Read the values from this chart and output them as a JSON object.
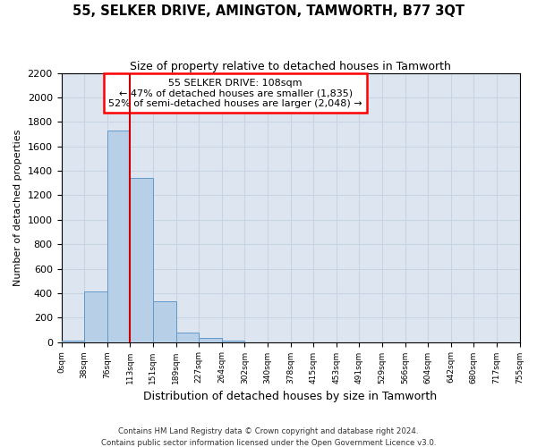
{
  "title": "55, SELKER DRIVE, AMINGTON, TAMWORTH, B77 3QT",
  "subtitle": "Size of property relative to detached houses in Tamworth",
  "xlabel": "Distribution of detached houses by size in Tamworth",
  "ylabel": "Number of detached properties",
  "footer_line1": "Contains HM Land Registry data © Crown copyright and database right 2024.",
  "footer_line2": "Contains public sector information licensed under the Open Government Licence v3.0.",
  "bin_labels": [
    "0sqm",
    "38sqm",
    "76sqm",
    "113sqm",
    "151sqm",
    "189sqm",
    "227sqm",
    "264sqm",
    "302sqm",
    "340sqm",
    "378sqm",
    "415sqm",
    "453sqm",
    "491sqm",
    "529sqm",
    "566sqm",
    "604sqm",
    "642sqm",
    "680sqm",
    "717sqm",
    "755sqm"
  ],
  "bar_values": [
    15,
    410,
    1730,
    1340,
    335,
    75,
    30,
    15,
    0,
    0,
    0,
    0,
    0,
    0,
    0,
    0,
    0,
    0,
    0,
    0
  ],
  "bar_color": "#b8cfe8",
  "bar_edge_color": "#6399c8",
  "grid_color": "#c8d4e4",
  "bg_color": "#dde6f0",
  "vline_color": "#cc0000",
  "annotation_text": "55 SELKER DRIVE: 108sqm\n← 47% of detached houses are smaller (1,835)\n52% of semi-detached houses are larger (2,048) →",
  "ylim": [
    0,
    2200
  ],
  "yticks": [
    0,
    200,
    400,
    600,
    800,
    1000,
    1200,
    1400,
    1600,
    1800,
    2000,
    2200
  ],
  "bin_width": 38,
  "vline_bin_index": 3
}
